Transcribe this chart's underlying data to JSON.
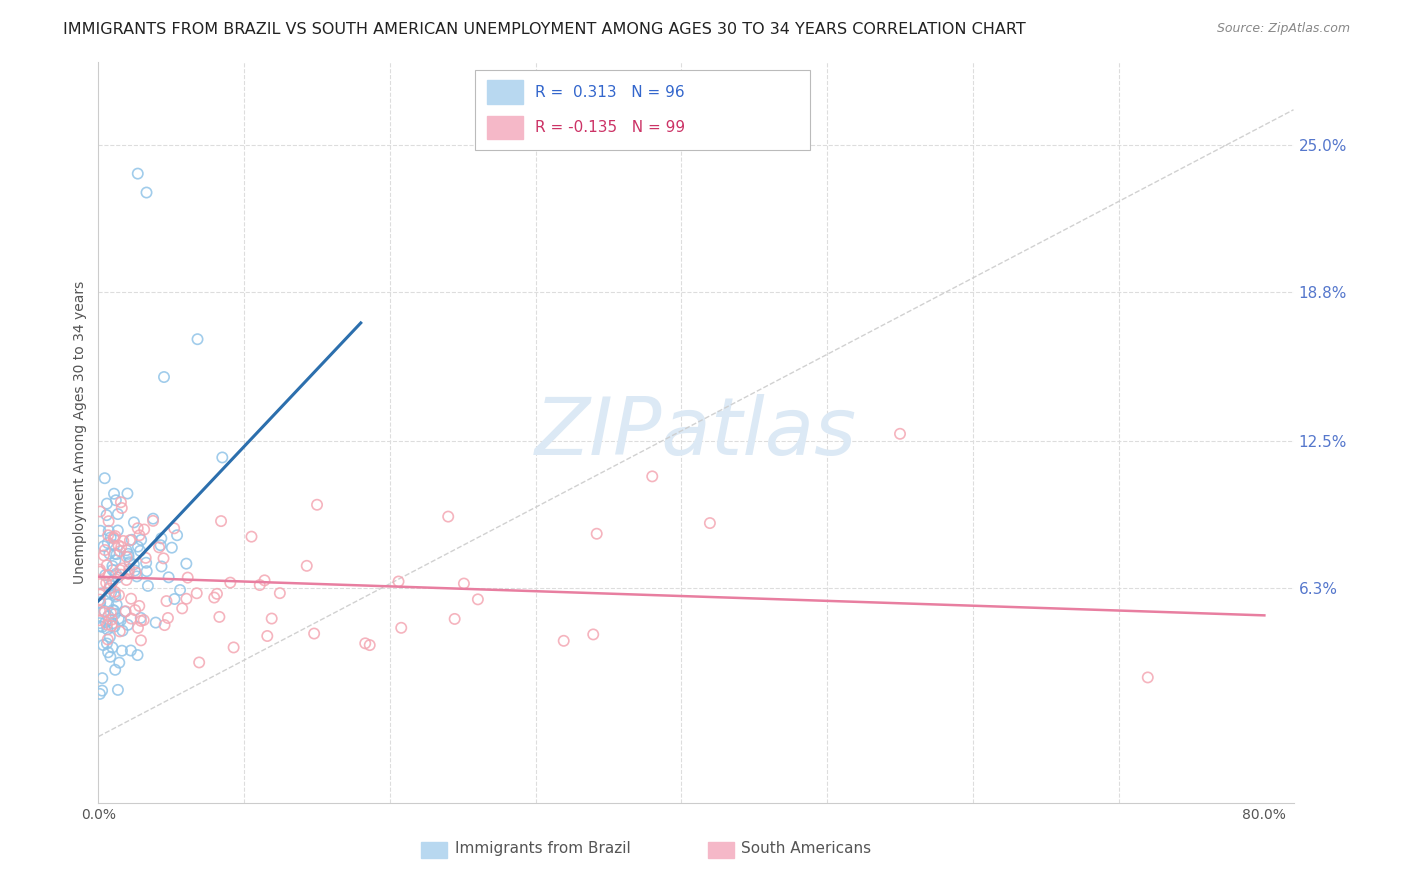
{
  "title": "IMMIGRANTS FROM BRAZIL VS SOUTH AMERICAN UNEMPLOYMENT AMONG AGES 30 TO 34 YEARS CORRELATION CHART",
  "source": "Source: ZipAtlas.com",
  "ylabel": "Unemployment Among Ages 30 to 34 years",
  "xlim": [
    0.0,
    0.82
  ],
  "ylim": [
    -0.028,
    0.285
  ],
  "ytick_vals": [
    0.063,
    0.125,
    0.188,
    0.25
  ],
  "ytick_labels": [
    "6.3%",
    "12.5%",
    "18.8%",
    "25.0%"
  ],
  "xtick_vals": [
    0.0,
    0.1,
    0.2,
    0.3,
    0.4,
    0.5,
    0.6,
    0.7,
    0.8
  ],
  "xtick_labels": [
    "0.0%",
    "",
    "",
    "",
    "",
    "",
    "",
    "",
    "80.0%"
  ],
  "brazil_color": "#91c4e8",
  "south_color": "#f4a7b3",
  "brazil_line_color": "#2c6fad",
  "south_line_color": "#e87ea0",
  "diagonal_color": "#cccccc",
  "watermark_color": "#dce9f5",
  "background_color": "#ffffff",
  "grid_color": "#dddddd",
  "right_axis_color": "#5577cc",
  "title_color": "#222222",
  "source_color": "#888888",
  "legend_text_blue": "#3366cc",
  "legend_text_pink": "#cc3366",
  "brazil_R": "0.313",
  "brazil_N": "96",
  "south_R": "-0.135",
  "south_N": "99",
  "brazil_label": "Immigrants from Brazil",
  "south_label": "South Americans"
}
